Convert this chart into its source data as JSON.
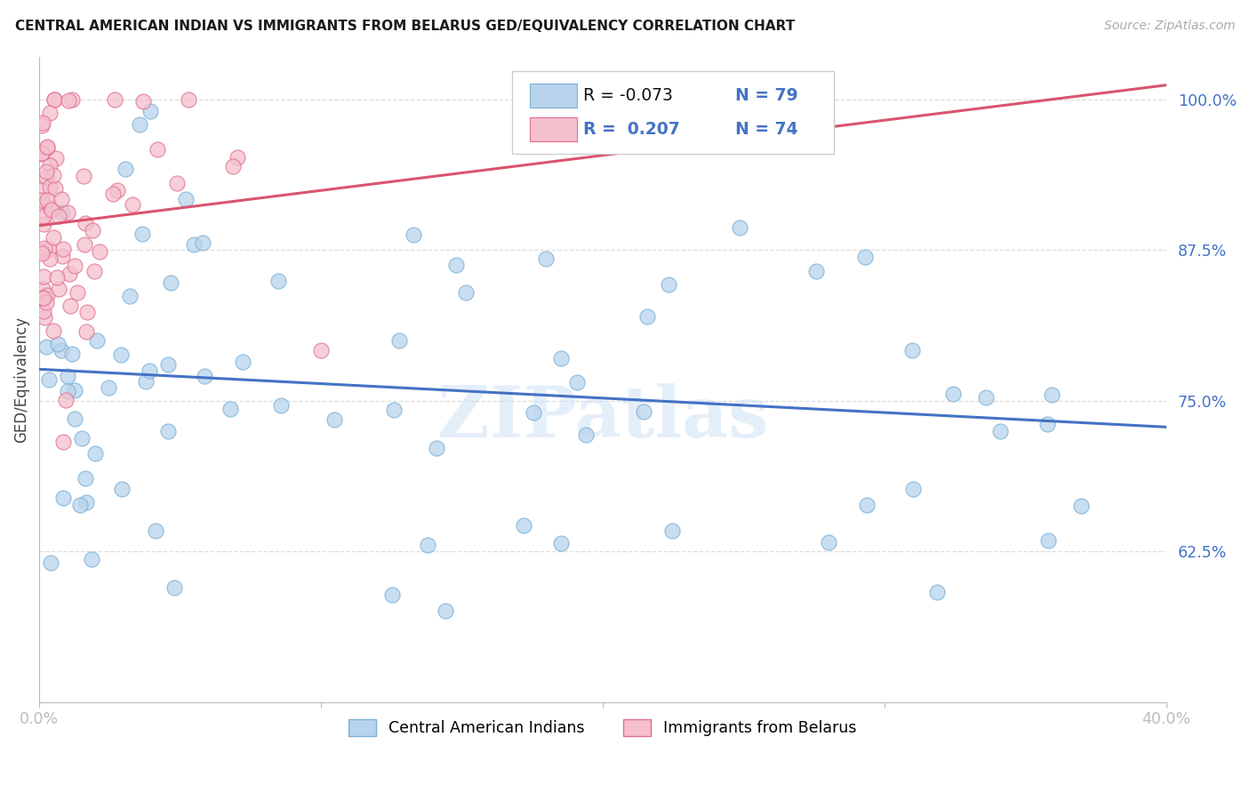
{
  "title": "CENTRAL AMERICAN INDIAN VS IMMIGRANTS FROM BELARUS GED/EQUIVALENCY CORRELATION CHART",
  "source": "Source: ZipAtlas.com",
  "ylabel": "GED/Equivalency",
  "xlim": [
    0.0,
    0.4
  ],
  "ylim": [
    0.5,
    1.035
  ],
  "yticks": [
    0.625,
    0.75,
    0.875,
    1.0
  ],
  "ytick_labels": [
    "62.5%",
    "75.0%",
    "87.5%",
    "100.0%"
  ],
  "xticks": [
    0.0,
    0.1,
    0.2,
    0.3,
    0.4
  ],
  "xtick_labels": [
    "0.0%",
    "",
    "",
    "",
    "40.0%"
  ],
  "blue_R": -0.073,
  "blue_N": 79,
  "pink_R": 0.207,
  "pink_N": 74,
  "blue_marker_color": "#b8d4ed",
  "blue_edge_color": "#7aafd4",
  "pink_marker_color": "#f5bfcc",
  "pink_edge_color": "#e07090",
  "blue_line_color": "#4472c4",
  "pink_line_color": "#d9546e",
  "tick_label_color": "#4472c4",
  "legend_blue_label": "Central American Indians",
  "legend_pink_label": "Immigrants from Belarus",
  "watermark": "ZIPatlas",
  "grid_color": "#dddddd"
}
